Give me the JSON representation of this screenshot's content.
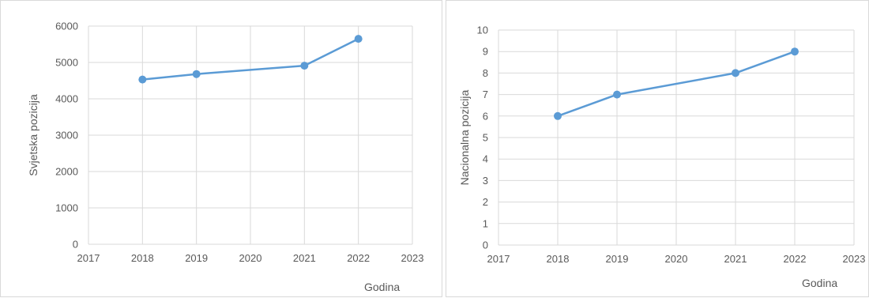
{
  "chart_data": [
    {
      "type": "line",
      "title": "",
      "xlabel": "Godina",
      "ylabel": "Svjetska pozicija",
      "xlim": [
        2017,
        2023
      ],
      "ylim": [
        0,
        6000
      ],
      "x_ticks": [
        "2017",
        "2018",
        "2019",
        "2020",
        "2021",
        "2022",
        "2023"
      ],
      "y_ticks": [
        "0",
        "1000",
        "2000",
        "3000",
        "4000",
        "5000",
        "6000"
      ],
      "grid": true,
      "legend": "none",
      "series": [
        {
          "x": [
            2018,
            2019,
            2021,
            2022
          ],
          "y": [
            4530,
            4680,
            4910,
            5650
          ],
          "color": "#5b9bd5"
        }
      ]
    },
    {
      "type": "line",
      "title": "",
      "xlabel": "Godina",
      "ylabel": "Nacionalna pozicija",
      "xlim": [
        2017,
        2023
      ],
      "ylim": [
        0,
        10
      ],
      "x_ticks": [
        "2017",
        "2018",
        "2019",
        "2020",
        "2021",
        "2022",
        "2023"
      ],
      "y_ticks": [
        "0",
        "1",
        "2",
        "3",
        "4",
        "5",
        "6",
        "7",
        "8",
        "9",
        "10"
      ],
      "grid": true,
      "legend": "none",
      "series": [
        {
          "x": [
            2018,
            2019,
            2021,
            2022
          ],
          "y": [
            6,
            7,
            8,
            9
          ],
          "color": "#5b9bd5"
        }
      ]
    }
  ]
}
